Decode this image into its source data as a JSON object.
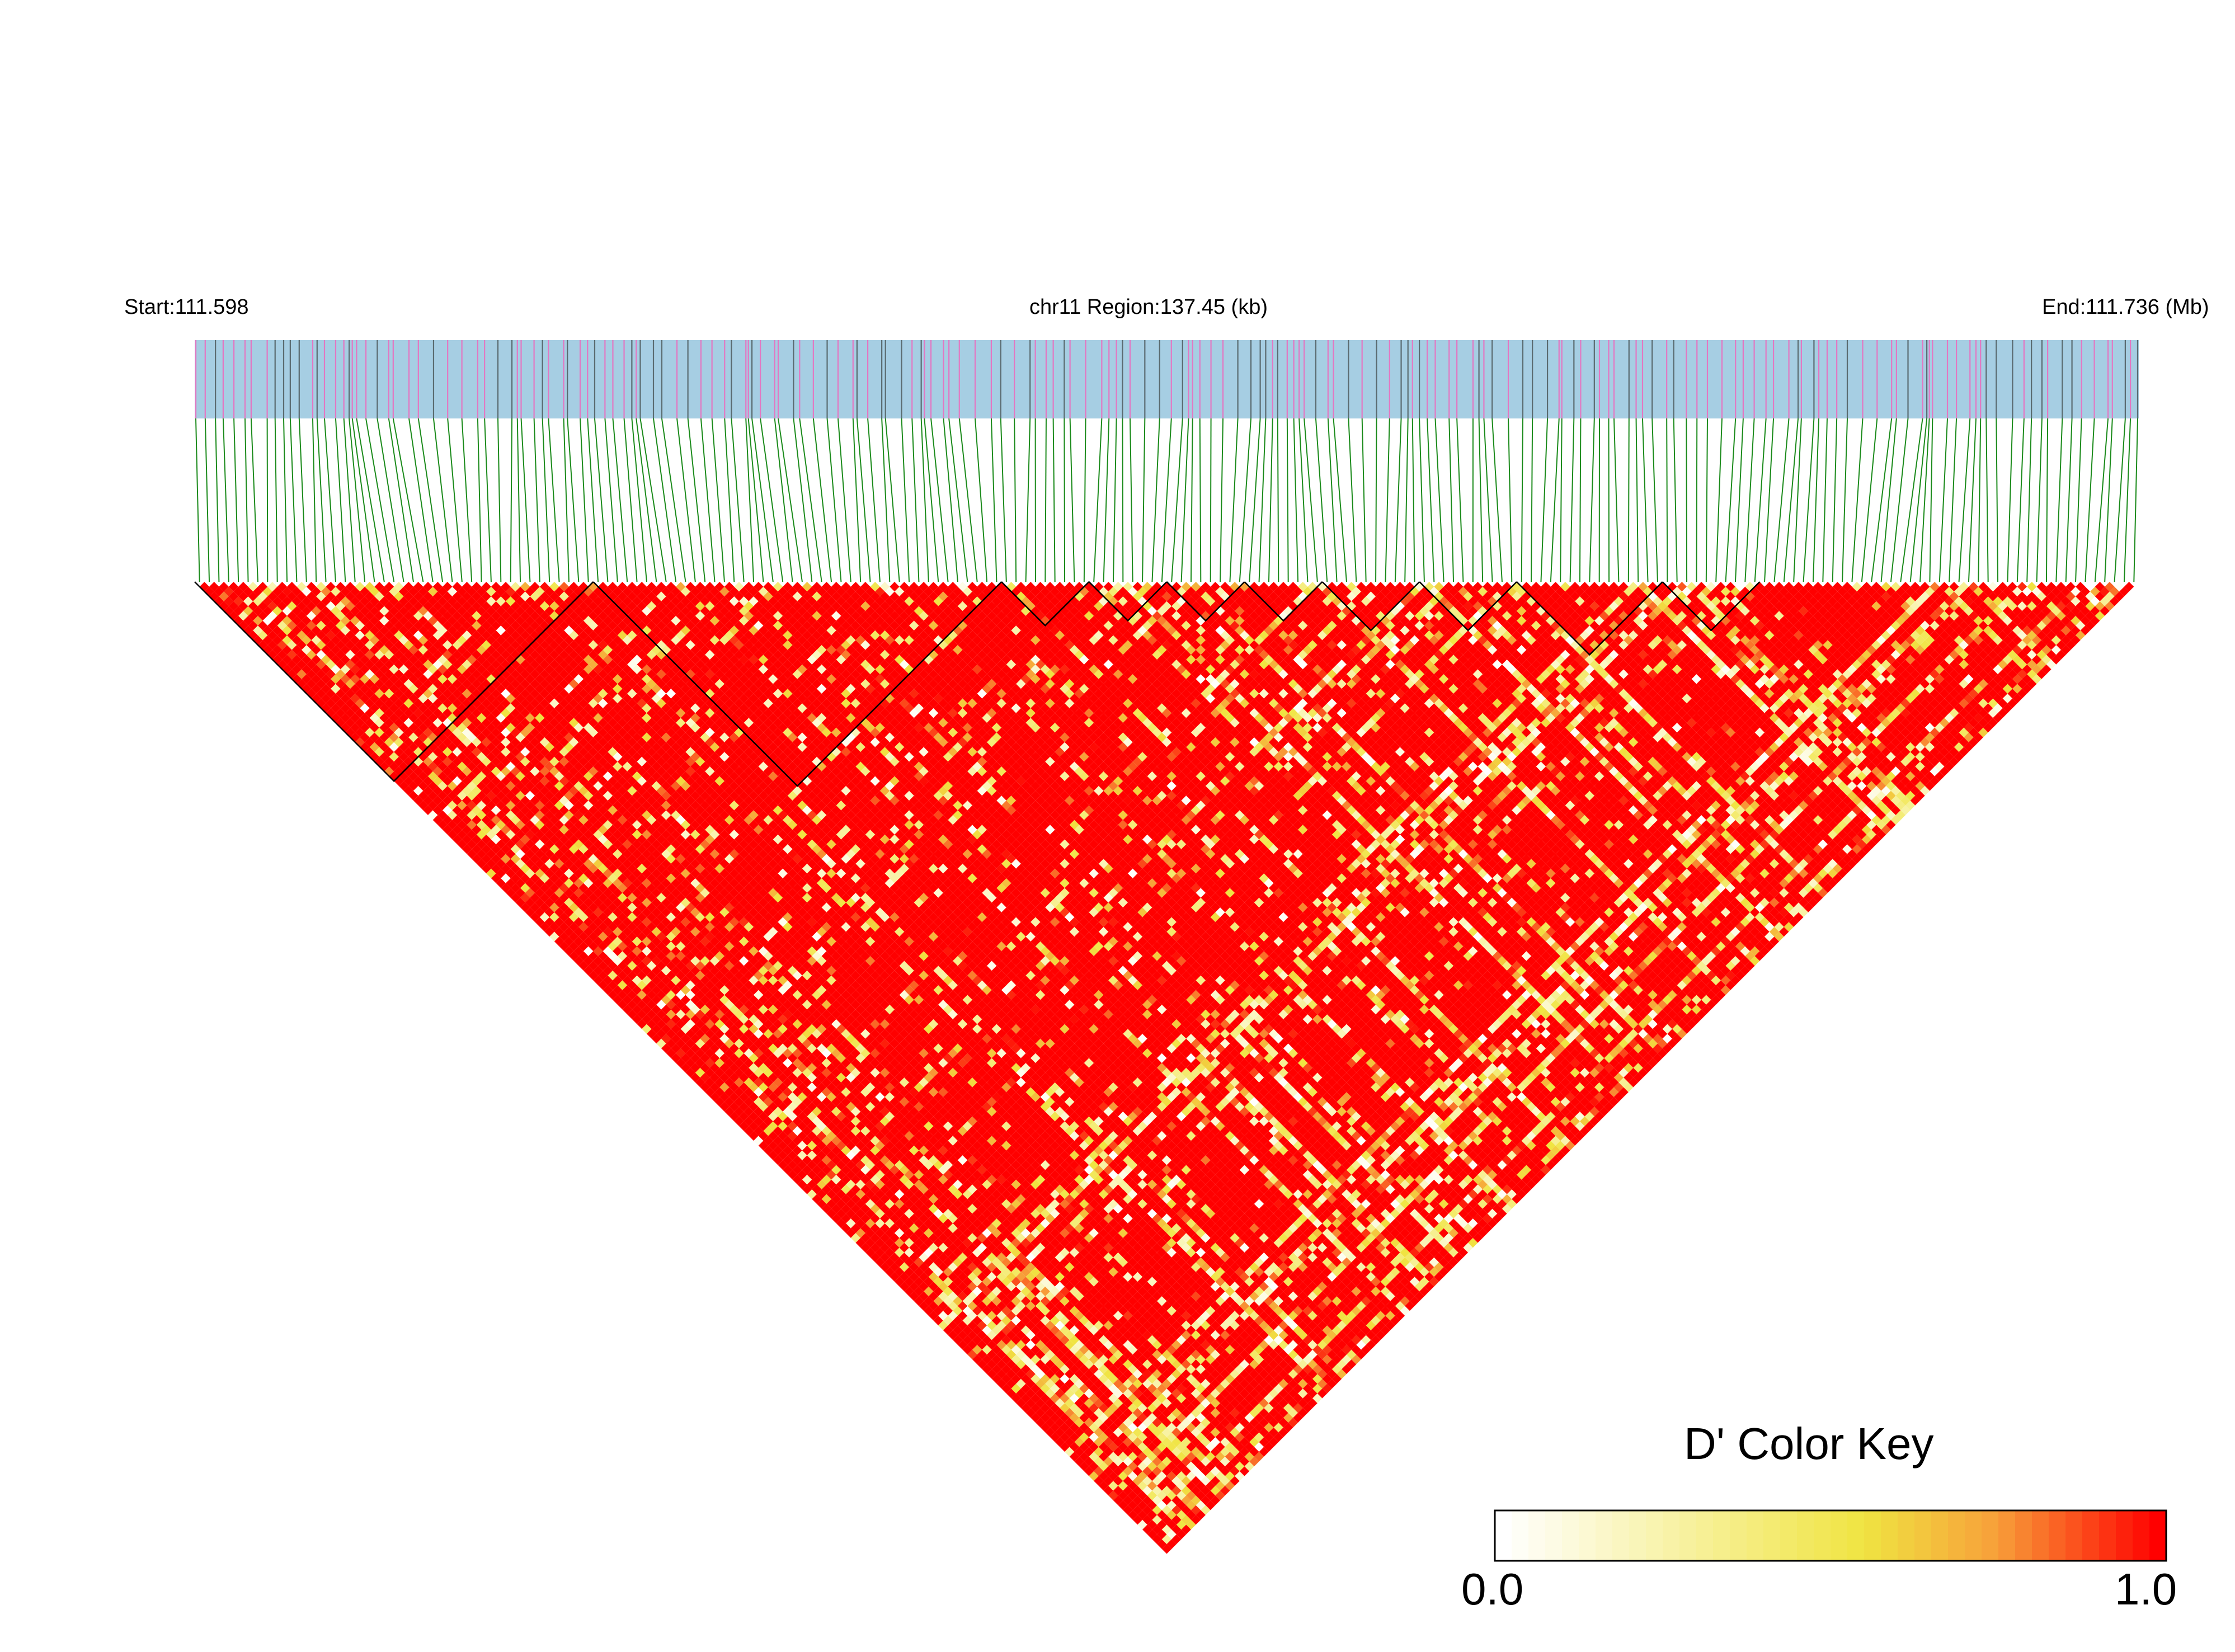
{
  "header": {
    "start_label": "Start:111.598",
    "region_label": "chr11 Region:137.45 (kb)",
    "end_label": "End:111.736 (Mb)"
  },
  "colors": {
    "track_bg": "#a6cee3",
    "snp_pink": "#e377c2",
    "snp_dark": "#5a6b70",
    "connector": "#1a8a1a",
    "ld_high": "#ff0000",
    "ld_mid": "#f0e442",
    "ld_low": "#ffffff",
    "block_outline": "#000000"
  },
  "chart_data": {
    "type": "heatmap",
    "subtype": "linkage-disequilibrium-triangle",
    "chromosome": "chr11",
    "region_start_mb": 111.598,
    "region_end_mb": 111.736,
    "region_length_kb": 137.45,
    "snp_count": 200,
    "metric": "D'",
    "color_key": {
      "title": "D' Color Key",
      "min_label": "0.0",
      "max_label": "1.0",
      "range": [
        0.0,
        1.0
      ],
      "stops": [
        "#ffffff",
        "#f0e442",
        "#f7a13a",
        "#ff0000"
      ]
    },
    "haplotype_blocks_snp_ranges": [
      [
        0,
        40
      ],
      [
        41,
        82
      ],
      [
        83,
        91
      ],
      [
        92,
        99
      ],
      [
        100,
        107
      ],
      [
        108,
        115
      ],
      [
        116,
        125
      ],
      [
        126,
        135
      ],
      [
        136,
        150
      ],
      [
        151,
        160
      ]
    ]
  }
}
